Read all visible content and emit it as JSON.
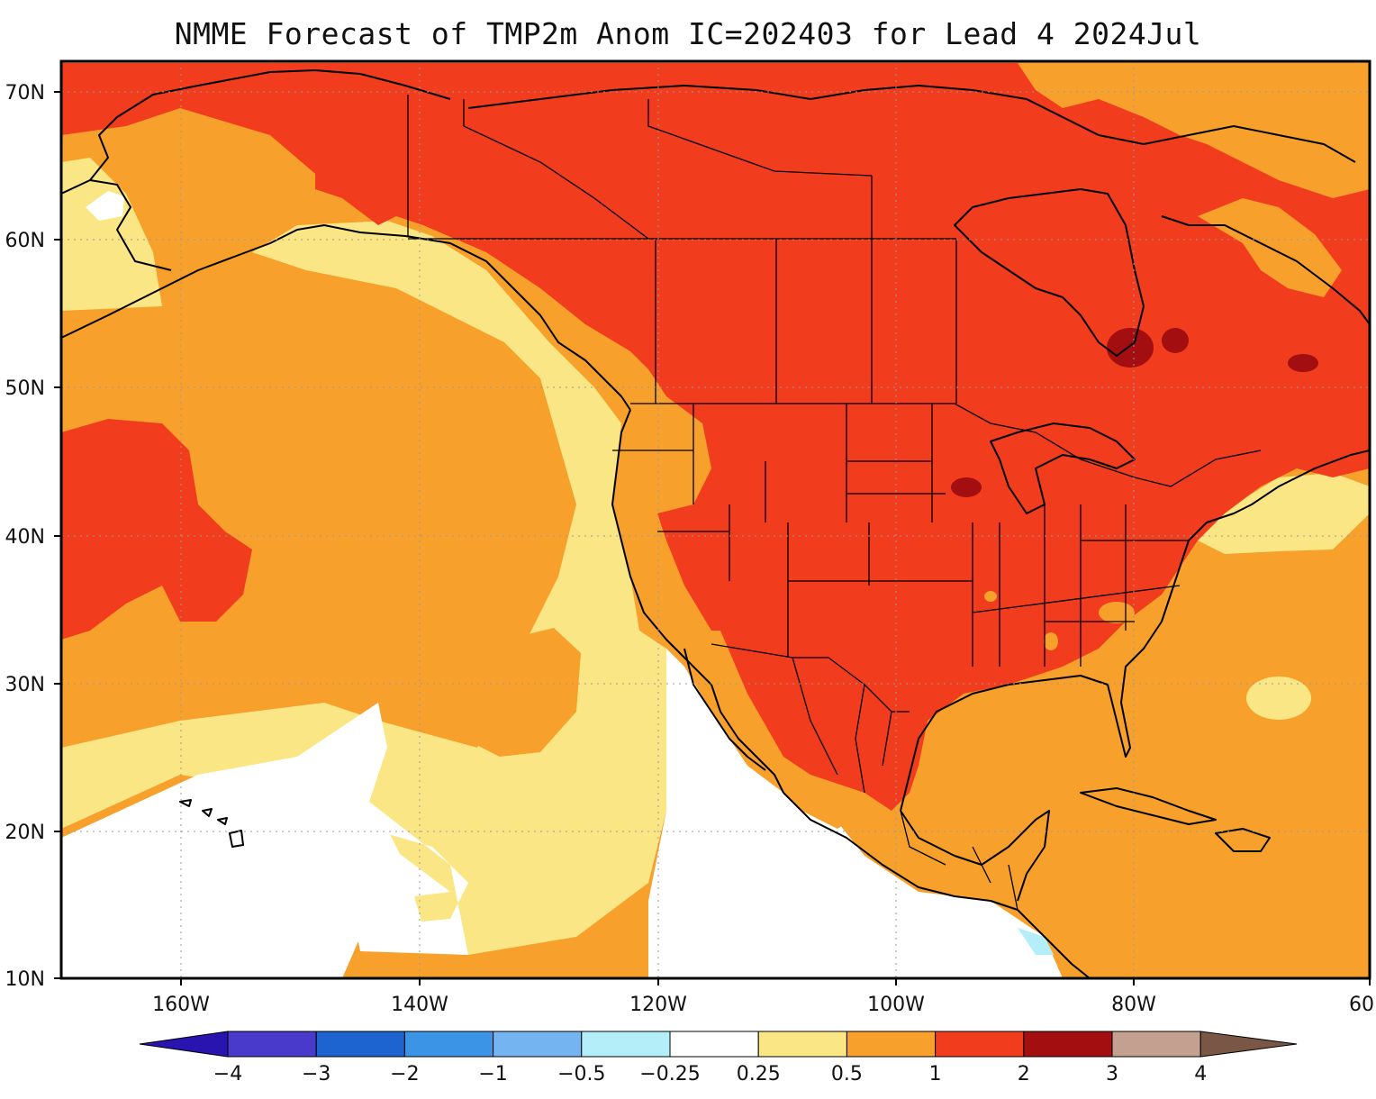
{
  "title": "NMME Forecast of TMP2m Anom IC=202403 for Lead 4 2024Jul",
  "map": {
    "region": "North America, NE Pacific, Caribbean",
    "variable": "2m temperature anomaly",
    "lat_labels": [
      "70N",
      "60N",
      "50N",
      "40N",
      "30N",
      "20N",
      "10N"
    ],
    "lon_labels": [
      "160W",
      "140W",
      "120W",
      "100W",
      "80W",
      "60"
    ]
  },
  "colorbar": {
    "labels": [
      "-4",
      "-3",
      "-2",
      "-1",
      "-0.5",
      "-0.25",
      "0.25",
      "0.5",
      "1",
      "2",
      "3",
      "4"
    ],
    "colors": [
      "#2a14b0",
      "#4a3acb",
      "#1e64d0",
      "#3c94e6",
      "#74b4f0",
      "#b4eef8",
      "#ffffff",
      "#fbe685",
      "#f7a02b",
      "#f23c1e",
      "#a30e10",
      "#c4a091",
      "#7a5646"
    ]
  }
}
